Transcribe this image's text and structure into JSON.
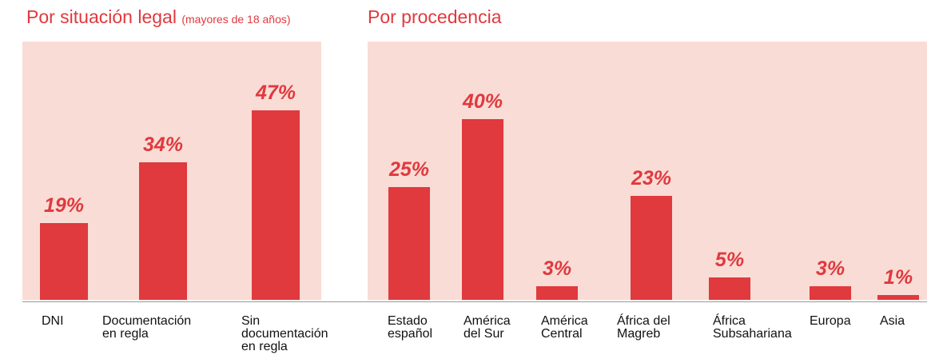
{
  "chart_data": [
    {
      "type": "bar",
      "title": "Por situación legal",
      "subtitle": "(mayores de 18 años)",
      "categories": [
        "DNI",
        "Documentación en regla",
        "Sin documentación en regla"
      ],
      "values": [
        19,
        34,
        47
      ],
      "value_labels": [
        "19%",
        "34%",
        "47%"
      ],
      "color": "#e0393e"
    },
    {
      "type": "bar",
      "title": "Por procedencia",
      "categories": [
        "Estado español",
        "América del Sur",
        "América Central",
        "África del Magreb",
        "África Subsahariana",
        "Europa",
        "Asia"
      ],
      "values": [
        25,
        40,
        3,
        23,
        5,
        3,
        1
      ],
      "value_labels": [
        "25%",
        "40%",
        "3%",
        "23%",
        "5%",
        "3%",
        "1%"
      ],
      "color": "#e0393e"
    }
  ]
}
